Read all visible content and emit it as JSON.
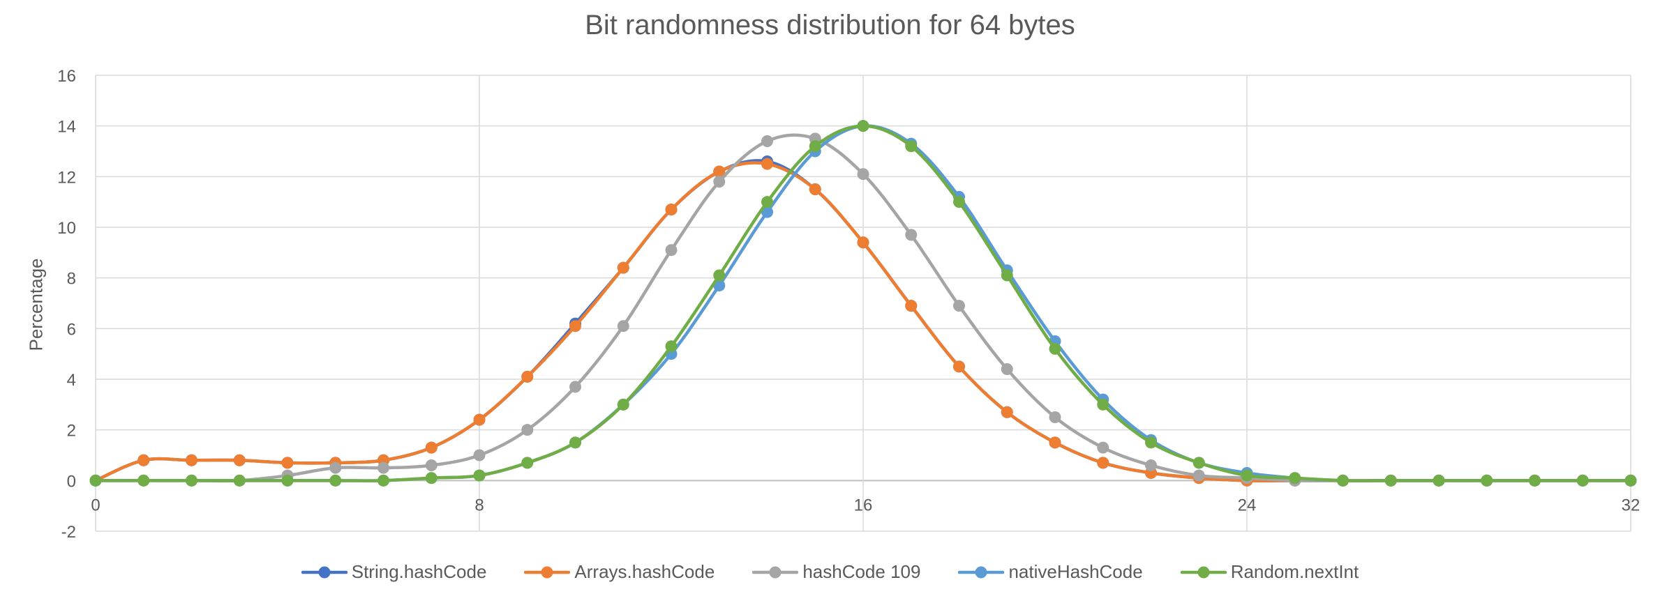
{
  "chart_data": {
    "type": "line",
    "title": "Bit randomness distribution for 64 bytes",
    "xlabel": "",
    "ylabel": "Percentage",
    "xlim": [
      0,
      32
    ],
    "ylim": [
      -2,
      16
    ],
    "x_ticks": [
      0,
      8,
      16,
      24,
      32
    ],
    "y_ticks": [
      -2,
      0,
      2,
      4,
      6,
      8,
      10,
      12,
      14,
      16
    ],
    "grid": true,
    "legend_position": "bottom",
    "smooth": true,
    "x": [
      0,
      1,
      2,
      3,
      4,
      5,
      6,
      7,
      8,
      9,
      10,
      11,
      12,
      13,
      14,
      15,
      16,
      17,
      18,
      19,
      20,
      21,
      22,
      23,
      24,
      25,
      26,
      27,
      28,
      29,
      30,
      31,
      32
    ],
    "series": [
      {
        "name": "String.hashCode",
        "color": "#4472C4",
        "values": [
          0,
          0.8,
          0.8,
          0.8,
          0.7,
          0.7,
          0.8,
          1.3,
          2.4,
          4.1,
          6.2,
          8.4,
          10.7,
          12.2,
          12.6,
          11.5,
          9.4,
          6.9,
          4.5,
          2.7,
          1.5,
          0.7,
          0.3,
          0.1,
          0,
          0,
          0,
          0,
          0,
          0,
          0,
          0,
          0
        ]
      },
      {
        "name": "Arrays.hashCode",
        "color": "#ED7D31",
        "values": [
          0,
          0.8,
          0.8,
          0.8,
          0.7,
          0.7,
          0.8,
          1.3,
          2.4,
          4.1,
          6.1,
          8.4,
          10.7,
          12.2,
          12.5,
          11.5,
          9.4,
          6.9,
          4.5,
          2.7,
          1.5,
          0.7,
          0.3,
          0.1,
          0,
          0,
          0,
          0,
          0,
          0,
          0,
          0,
          0
        ]
      },
      {
        "name": "hashCode 109",
        "color": "#A5A5A5",
        "values": [
          0,
          0,
          0,
          0,
          0.2,
          0.5,
          0.5,
          0.6,
          1.0,
          2.0,
          3.7,
          6.1,
          9.1,
          11.8,
          13.4,
          13.5,
          12.1,
          9.7,
          6.9,
          4.4,
          2.5,
          1.3,
          0.6,
          0.2,
          0.1,
          0,
          0,
          0,
          0,
          0,
          0,
          0,
          0
        ]
      },
      {
        "name": "nativeHashCode",
        "color": "#5B9BD5",
        "values": [
          0,
          0,
          0,
          0,
          0,
          0,
          0,
          0.1,
          0.2,
          0.7,
          1.5,
          3.0,
          5.0,
          7.7,
          10.6,
          13.0,
          14.0,
          13.3,
          11.2,
          8.3,
          5.5,
          3.2,
          1.6,
          0.7,
          0.3,
          0.1,
          0,
          0,
          0,
          0,
          0,
          0,
          0
        ]
      },
      {
        "name": "Random.nextInt",
        "color": "#70AD47",
        "values": [
          0,
          0,
          0,
          0,
          0,
          0,
          0,
          0.1,
          0.2,
          0.7,
          1.5,
          3.0,
          5.3,
          8.1,
          11.0,
          13.2,
          14.0,
          13.2,
          11.0,
          8.1,
          5.2,
          3.0,
          1.5,
          0.7,
          0.2,
          0.1,
          0,
          0,
          0,
          0,
          0,
          0,
          0
        ]
      }
    ]
  }
}
